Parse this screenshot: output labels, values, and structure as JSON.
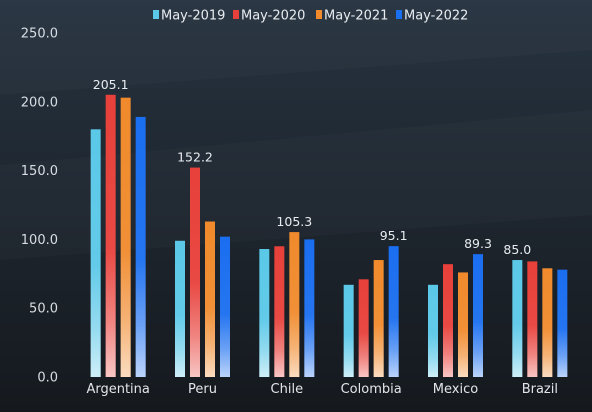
{
  "chart_data": {
    "type": "bar",
    "title": "",
    "xlabel": "",
    "ylabel": "",
    "ylim": [
      0,
      250
    ],
    "yticks": [
      "0.0",
      "50.0",
      "100.0",
      "150.0",
      "200.0",
      "250.0"
    ],
    "categories": [
      "Argentina",
      "Peru",
      "Chile",
      "Colombia",
      "Mexico",
      "Brazil"
    ],
    "series": [
      {
        "name": "May-2019",
        "color": "#5bc8e8",
        "values": [
          180,
          99,
          93,
          67,
          67,
          85
        ]
      },
      {
        "name": "May-2020",
        "color": "#e8403a",
        "values": [
          205.1,
          152.2,
          95,
          71,
          82,
          84
        ]
      },
      {
        "name": "May-2021",
        "color": "#f08a2c",
        "values": [
          203,
          113,
          105.3,
          85,
          76,
          79
        ]
      },
      {
        "name": "May-2022",
        "color": "#1a6ef0",
        "values": [
          189,
          102,
          100,
          95.1,
          89.3,
          78
        ]
      }
    ],
    "data_labels": [
      {
        "category": "Argentina",
        "series": "May-2020",
        "text": "205.1"
      },
      {
        "category": "Peru",
        "series": "May-2020",
        "text": "152.2"
      },
      {
        "category": "Chile",
        "series": "May-2021",
        "text": "105.3"
      },
      {
        "category": "Colombia",
        "series": "May-2022",
        "text": "95.1"
      },
      {
        "category": "Mexico",
        "series": "May-2022",
        "text": "89.3"
      },
      {
        "category": "Brazil",
        "series": "May-2019",
        "text": "85.0"
      }
    ],
    "legend_position": "top-center",
    "grid": false
  }
}
